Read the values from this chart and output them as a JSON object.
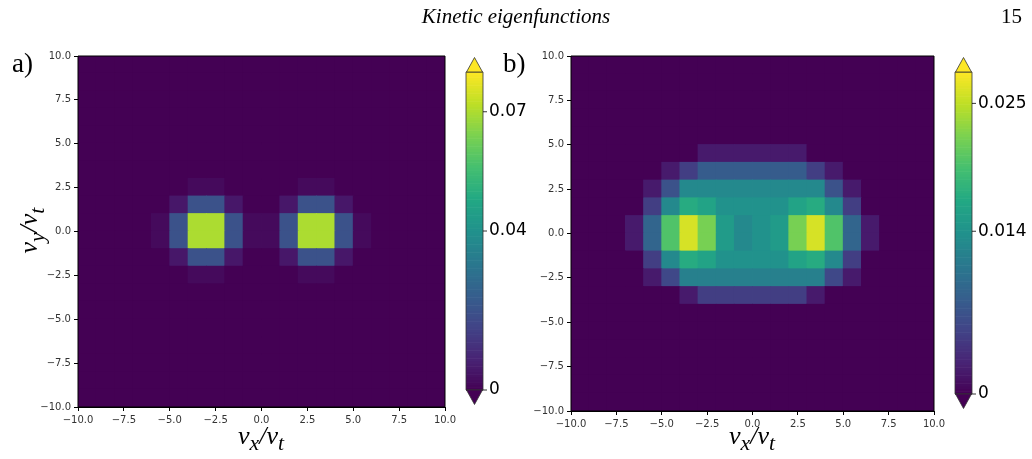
{
  "chart_data": [
    {
      "type": "heatmap",
      "title": "Kinetic eigenfunctions",
      "annotations": [
        "a)",
        "15"
      ],
      "xlabel": "v$_{x}$/v$_{t}$",
      "ylabel": "v$_{y}$/v$_{t}$",
      "xlim": [
        -10,
        10
      ],
      "ylim": [
        -10,
        10
      ],
      "xticks": [
        {
          "value": -10,
          "label": "−10.0"
        },
        {
          "value": -7.5,
          "label": "−7.5"
        },
        {
          "value": -5,
          "label": "−5.0"
        },
        {
          "value": -2.5,
          "label": "−2.5"
        },
        {
          "value": 0,
          "label": "0.0"
        },
        {
          "value": 2.5,
          "label": "2.5"
        },
        {
          "value": 5,
          "label": "5.0"
        },
        {
          "value": 7.5,
          "label": "7.5"
        },
        {
          "value": 10,
          "label": "10.0"
        }
      ],
      "yticks": [
        {
          "value": -10,
          "label": "−10.0"
        },
        {
          "value": -7.5,
          "label": "−7.5"
        },
        {
          "value": -5,
          "label": "−5.0"
        },
        {
          "value": -2.5,
          "label": "−2.5"
        },
        {
          "value": 0,
          "label": "0.0"
        },
        {
          "value": 2.5,
          "label": "2.5"
        },
        {
          "value": 5,
          "label": "5.0"
        },
        {
          "value": 7.5,
          "label": "7.5"
        },
        {
          "value": 10,
          "label": "10.0"
        }
      ],
      "clim": [
        0,
        0.08
      ],
      "cticks": [
        0,
        0.04,
        0.07
      ],
      "cells": [
        [
          0,
          0,
          0,
          0,
          0,
          0,
          0,
          0,
          0,
          0,
          0,
          0,
          0,
          0,
          0,
          0,
          0,
          0,
          0,
          0
        ],
        [
          0,
          0,
          0,
          0,
          0,
          0,
          0,
          0,
          0,
          0,
          0,
          0,
          0,
          0,
          0,
          0,
          0,
          0,
          0,
          0
        ],
        [
          0,
          0,
          0,
          0,
          0,
          0,
          0,
          0,
          0,
          0,
          0,
          0,
          0,
          0,
          0,
          0,
          0,
          0,
          0,
          0
        ],
        [
          0,
          0,
          0,
          0,
          0,
          0,
          0,
          0,
          0,
          0,
          0,
          0,
          0,
          0,
          0,
          0,
          0,
          0,
          0,
          0
        ],
        [
          0,
          0,
          0,
          0,
          0,
          0,
          0,
          0,
          0,
          0,
          0,
          0,
          0,
          0,
          0,
          0,
          0,
          0,
          0,
          0
        ],
        [
          0,
          0,
          0,
          0,
          0,
          0,
          0,
          0,
          0,
          0,
          0,
          0,
          0,
          0,
          0,
          0,
          0,
          0,
          0,
          0
        ],
        [
          0,
          0,
          0,
          0,
          0,
          0,
          0,
          0,
          0,
          0,
          0,
          0,
          0,
          0,
          0,
          0,
          0,
          0,
          0,
          0
        ],
        [
          0,
          0,
          0,
          0,
          0,
          0,
          0.002,
          0.002,
          0,
          0,
          0,
          0,
          0.002,
          0.002,
          0,
          0,
          0,
          0,
          0,
          0
        ],
        [
          0,
          0,
          0,
          0,
          0,
          0.005,
          0.02,
          0.02,
          0.005,
          0,
          0,
          0.005,
          0.02,
          0.02,
          0.005,
          0,
          0,
          0,
          0,
          0
        ],
        [
          0,
          0,
          0,
          0,
          0.002,
          0.02,
          0.07,
          0.07,
          0.02,
          0.002,
          0.002,
          0.02,
          0.07,
          0.07,
          0.02,
          0.002,
          0,
          0,
          0,
          0
        ],
        [
          0,
          0,
          0,
          0,
          0.002,
          0.02,
          0.07,
          0.07,
          0.02,
          0.002,
          0.002,
          0.02,
          0.07,
          0.07,
          0.02,
          0.002,
          0,
          0,
          0,
          0
        ],
        [
          0,
          0,
          0,
          0,
          0,
          0.005,
          0.02,
          0.02,
          0.005,
          0,
          0,
          0.005,
          0.02,
          0.02,
          0.005,
          0,
          0,
          0,
          0,
          0
        ],
        [
          0,
          0,
          0,
          0,
          0,
          0,
          0.002,
          0.002,
          0,
          0,
          0,
          0,
          0.002,
          0.002,
          0,
          0,
          0,
          0,
          0,
          0
        ],
        [
          0,
          0,
          0,
          0,
          0,
          0,
          0,
          0,
          0,
          0,
          0,
          0,
          0,
          0,
          0,
          0,
          0,
          0,
          0,
          0
        ],
        [
          0,
          0,
          0,
          0,
          0,
          0,
          0,
          0,
          0,
          0,
          0,
          0,
          0,
          0,
          0,
          0,
          0,
          0,
          0,
          0
        ],
        [
          0,
          0,
          0,
          0,
          0,
          0,
          0,
          0,
          0,
          0,
          0,
          0,
          0,
          0,
          0,
          0,
          0,
          0,
          0,
          0
        ],
        [
          0,
          0,
          0,
          0,
          0,
          0,
          0,
          0,
          0,
          0,
          0,
          0,
          0,
          0,
          0,
          0,
          0,
          0,
          0,
          0
        ],
        [
          0,
          0,
          0,
          0,
          0,
          0,
          0,
          0,
          0,
          0,
          0,
          0,
          0,
          0,
          0,
          0,
          0,
          0,
          0,
          0
        ],
        [
          0,
          0,
          0,
          0,
          0,
          0,
          0,
          0,
          0,
          0,
          0,
          0,
          0,
          0,
          0,
          0,
          0,
          0,
          0,
          0
        ],
        [
          0,
          0,
          0,
          0,
          0,
          0,
          0,
          0,
          0,
          0,
          0,
          0,
          0,
          0,
          0,
          0,
          0,
          0,
          0,
          0
        ]
      ]
    },
    {
      "type": "heatmap",
      "annotations": [
        "b)"
      ],
      "xlabel": "v$_{x}$/v$_{t}$",
      "xlim": [
        -10,
        10
      ],
      "ylim": [
        -10,
        10
      ],
      "xticks": [
        {
          "value": -10,
          "label": "−10.0"
        },
        {
          "value": -7.5,
          "label": "−7.5"
        },
        {
          "value": -5,
          "label": "−5.0"
        },
        {
          "value": -2.5,
          "label": "−2.5"
        },
        {
          "value": 0,
          "label": "0.0"
        },
        {
          "value": 2.5,
          "label": "2.5"
        },
        {
          "value": 5,
          "label": "5.0"
        },
        {
          "value": 7.5,
          "label": "7.5"
        },
        {
          "value": 10,
          "label": "10.0"
        }
      ],
      "yticks": [
        {
          "value": -10,
          "label": "−10.0"
        },
        {
          "value": -7.5,
          "label": "−7.5"
        },
        {
          "value": -5,
          "label": "−5.0"
        },
        {
          "value": -2.5,
          "label": "−2.5"
        },
        {
          "value": 0,
          "label": "0.0"
        },
        {
          "value": 2.5,
          "label": "2.5"
        },
        {
          "value": 5,
          "label": "5.0"
        },
        {
          "value": 7.5,
          "label": "7.5"
        },
        {
          "value": 10,
          "label": "10.0"
        }
      ],
      "clim": [
        0,
        0.0277
      ],
      "cticks": [
        0,
        0.014,
        0.025
      ],
      "cells": [
        [
          0,
          0,
          0,
          0,
          0,
          0,
          0,
          0,
          0,
          0,
          0,
          0,
          0,
          0,
          0,
          0,
          0,
          0,
          0,
          0
        ],
        [
          0,
          0,
          0,
          0,
          0,
          0,
          0,
          0,
          0,
          0,
          0,
          0,
          0,
          0,
          0,
          0,
          0,
          0,
          0,
          0
        ],
        [
          0,
          0,
          0,
          0,
          0,
          0,
          0,
          0,
          0,
          0,
          0,
          0,
          0,
          0,
          0,
          0,
          0,
          0,
          0,
          0
        ],
        [
          0,
          0,
          0,
          0,
          0,
          0,
          0,
          0,
          0,
          0,
          0,
          0,
          0,
          0,
          0,
          0,
          0,
          0,
          0,
          0
        ],
        [
          0,
          0,
          0,
          0,
          0,
          0,
          0,
          0,
          0,
          0,
          0,
          0,
          0,
          0,
          0,
          0,
          0,
          0,
          0,
          0
        ],
        [
          0,
          0,
          0,
          0,
          0,
          0,
          0,
          0.002,
          0.002,
          0.002,
          0.002,
          0.002,
          0.002,
          0,
          0,
          0,
          0,
          0,
          0,
          0
        ],
        [
          0,
          0,
          0,
          0,
          0,
          0.002,
          0.005,
          0.008,
          0.008,
          0.008,
          0.008,
          0.008,
          0.008,
          0.005,
          0.002,
          0,
          0,
          0,
          0,
          0
        ],
        [
          0,
          0,
          0,
          0,
          0.002,
          0.007,
          0.013,
          0.013,
          0.013,
          0.013,
          0.013,
          0.013,
          0.013,
          0.013,
          0.007,
          0.002,
          0,
          0,
          0,
          0
        ],
        [
          0,
          0,
          0,
          0,
          0.005,
          0.013,
          0.017,
          0.016,
          0.014,
          0.014,
          0.014,
          0.014,
          0.016,
          0.017,
          0.013,
          0.005,
          0,
          0,
          0,
          0
        ],
        [
          0,
          0,
          0,
          0.002,
          0.009,
          0.02,
          0.026,
          0.022,
          0.015,
          0.013,
          0.014,
          0.015,
          0.022,
          0.026,
          0.02,
          0.009,
          0.002,
          0,
          0,
          0
        ],
        [
          0,
          0,
          0,
          0.002,
          0.009,
          0.02,
          0.026,
          0.022,
          0.015,
          0.013,
          0.014,
          0.015,
          0.022,
          0.026,
          0.02,
          0.009,
          0.002,
          0,
          0,
          0
        ],
        [
          0,
          0,
          0,
          0,
          0.005,
          0.013,
          0.017,
          0.016,
          0.014,
          0.014,
          0.014,
          0.014,
          0.016,
          0.017,
          0.013,
          0.005,
          0,
          0,
          0,
          0
        ],
        [
          0,
          0,
          0,
          0,
          0.002,
          0.006,
          0.012,
          0.012,
          0.012,
          0.012,
          0.012,
          0.012,
          0.012,
          0.012,
          0.006,
          0.002,
          0,
          0,
          0,
          0
        ],
        [
          0,
          0,
          0,
          0,
          0,
          0,
          0.002,
          0.005,
          0.005,
          0.005,
          0.005,
          0.005,
          0.005,
          0.002,
          0,
          0,
          0,
          0,
          0,
          0
        ],
        [
          0,
          0,
          0,
          0,
          0,
          0,
          0,
          0,
          0,
          0,
          0,
          0,
          0,
          0,
          0,
          0,
          0,
          0,
          0,
          0
        ],
        [
          0,
          0,
          0,
          0,
          0,
          0,
          0,
          0,
          0,
          0,
          0,
          0,
          0,
          0,
          0,
          0,
          0,
          0,
          0,
          0
        ],
        [
          0,
          0,
          0,
          0,
          0,
          0,
          0,
          0,
          0,
          0,
          0,
          0,
          0,
          0,
          0,
          0,
          0,
          0,
          0,
          0
        ],
        [
          0,
          0,
          0,
          0,
          0,
          0,
          0,
          0,
          0,
          0,
          0,
          0,
          0,
          0,
          0,
          0,
          0,
          0,
          0,
          0
        ],
        [
          0,
          0,
          0,
          0,
          0,
          0,
          0,
          0,
          0,
          0,
          0,
          0,
          0,
          0,
          0,
          0,
          0,
          0,
          0,
          0
        ],
        [
          0,
          0,
          0,
          0,
          0,
          0,
          0,
          0,
          0,
          0,
          0,
          0,
          0,
          0,
          0,
          0,
          0,
          0,
          0,
          0
        ]
      ]
    }
  ]
}
